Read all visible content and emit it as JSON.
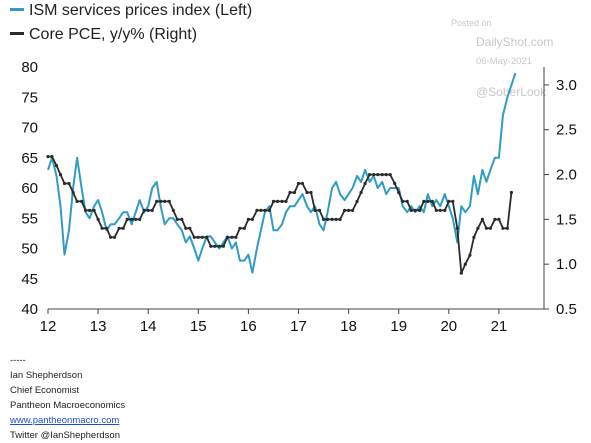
{
  "legend": {
    "left_label": "ISM services prices index (Left)",
    "right_label": "Core PCE, y/y% (Right)"
  },
  "watermark": {
    "posted": "Posted on",
    "site": "DailyShot.com",
    "date": "06-May-2021",
    "handle": "@SoberLook"
  },
  "footer": {
    "divider": "-----",
    "name": "Ian Shepherdson",
    "title": "Chief Economist",
    "company": "Pantheon Macroeconomics",
    "website": "www.pantheonmacro.com",
    "twitter": "Twitter @IanShepherdson"
  },
  "colors": {
    "ism": "#2e9cc4",
    "pce": "#2b2b2b",
    "axis": "#444444",
    "watermark": "#c8c8c8",
    "link": "#1a4fd6"
  },
  "chart_data": {
    "type": "line",
    "x_ticks": [
      "12",
      "13",
      "14",
      "15",
      "16",
      "17",
      "18",
      "19",
      "20",
      "21"
    ],
    "xlim": [
      2012.0,
      2021.9
    ],
    "y_left": {
      "lim": [
        40,
        80
      ],
      "ticks": [
        "40",
        "45",
        "50",
        "55",
        "60",
        "65",
        "70",
        "75",
        "80"
      ]
    },
    "y_right": {
      "lim": [
        0.5,
        3.2
      ],
      "ticks": [
        "0.5",
        "1.0",
        "1.5",
        "2.0",
        "2.5",
        "3.0"
      ]
    },
    "series": [
      {
        "name": "ISM services prices index (Left)",
        "axis": "left",
        "marker": "none",
        "x": [
          2012.0,
          2012.08,
          2012.17,
          2012.25,
          2012.33,
          2012.42,
          2012.5,
          2012.58,
          2012.67,
          2012.75,
          2012.83,
          2012.92,
          2013.0,
          2013.08,
          2013.17,
          2013.25,
          2013.33,
          2013.42,
          2013.5,
          2013.58,
          2013.67,
          2013.75,
          2013.83,
          2013.92,
          2014.0,
          2014.08,
          2014.17,
          2014.25,
          2014.33,
          2014.42,
          2014.5,
          2014.58,
          2014.67,
          2014.75,
          2014.83,
          2014.92,
          2015.0,
          2015.08,
          2015.17,
          2015.25,
          2015.33,
          2015.42,
          2015.5,
          2015.58,
          2015.67,
          2015.75,
          2015.83,
          2015.92,
          2016.0,
          2016.08,
          2016.17,
          2016.25,
          2016.33,
          2016.42,
          2016.5,
          2016.58,
          2016.67,
          2016.75,
          2016.83,
          2016.92,
          2017.0,
          2017.08,
          2017.17,
          2017.25,
          2017.33,
          2017.42,
          2017.5,
          2017.58,
          2017.67,
          2017.75,
          2017.83,
          2017.92,
          2018.0,
          2018.08,
          2018.17,
          2018.25,
          2018.33,
          2018.42,
          2018.5,
          2018.58,
          2018.67,
          2018.75,
          2018.83,
          2018.92,
          2019.0,
          2019.08,
          2019.17,
          2019.25,
          2019.33,
          2019.42,
          2019.5,
          2019.58,
          2019.67,
          2019.75,
          2019.83,
          2019.92,
          2020.0,
          2020.08,
          2020.17,
          2020.25,
          2020.33,
          2020.42,
          2020.5,
          2020.58,
          2020.67,
          2020.75,
          2020.83,
          2020.92,
          2021.0,
          2021.08,
          2021.17,
          2021.25,
          2021.33
        ],
        "values": [
          63,
          65,
          62,
          57,
          49,
          53,
          60,
          65,
          60,
          56,
          55,
          57,
          58,
          56,
          53,
          54,
          54,
          55,
          56,
          56,
          54,
          56,
          58,
          56,
          57,
          60,
          61,
          57,
          54,
          55,
          55,
          54,
          53,
          51,
          52,
          50,
          48,
          50,
          52,
          52,
          51,
          50,
          51,
          52,
          50,
          51,
          48,
          48,
          49,
          46,
          50,
          53,
          56,
          57,
          53,
          53,
          54,
          56,
          57,
          57,
          58,
          59,
          57,
          56,
          57,
          54,
          53,
          56,
          60,
          61,
          59,
          58,
          59,
          60,
          62,
          61,
          63,
          61,
          62,
          60,
          61,
          59,
          60,
          60,
          60,
          57,
          56,
          57,
          56,
          57,
          56,
          59,
          57,
          58,
          57,
          59,
          57,
          55,
          51,
          57,
          56,
          57,
          62,
          59,
          63,
          61,
          63,
          65,
          65,
          72,
          75,
          77,
          79
        ]
      },
      {
        "name": "Core PCE, y/y% (Right)",
        "axis": "right",
        "marker": "dot",
        "x": [
          2012.0,
          2012.08,
          2012.17,
          2012.25,
          2012.33,
          2012.42,
          2012.5,
          2012.58,
          2012.67,
          2012.75,
          2012.83,
          2012.92,
          2013.0,
          2013.08,
          2013.17,
          2013.25,
          2013.33,
          2013.42,
          2013.5,
          2013.58,
          2013.67,
          2013.75,
          2013.83,
          2013.92,
          2014.0,
          2014.08,
          2014.17,
          2014.25,
          2014.33,
          2014.42,
          2014.5,
          2014.58,
          2014.67,
          2014.75,
          2014.83,
          2014.92,
          2015.0,
          2015.08,
          2015.17,
          2015.25,
          2015.33,
          2015.42,
          2015.5,
          2015.58,
          2015.67,
          2015.75,
          2015.83,
          2015.92,
          2016.0,
          2016.08,
          2016.17,
          2016.25,
          2016.33,
          2016.42,
          2016.5,
          2016.58,
          2016.67,
          2016.75,
          2016.83,
          2016.92,
          2017.0,
          2017.08,
          2017.17,
          2017.25,
          2017.33,
          2017.42,
          2017.5,
          2017.58,
          2017.67,
          2017.75,
          2017.83,
          2017.92,
          2018.0,
          2018.08,
          2018.17,
          2018.25,
          2018.33,
          2018.42,
          2018.5,
          2018.58,
          2018.67,
          2018.75,
          2018.83,
          2018.92,
          2019.0,
          2019.08,
          2019.17,
          2019.25,
          2019.33,
          2019.42,
          2019.5,
          2019.58,
          2019.67,
          2019.75,
          2019.83,
          2019.92,
          2020.0,
          2020.08,
          2020.17,
          2020.25,
          2020.33,
          2020.42,
          2020.5,
          2020.58,
          2020.67,
          2020.75,
          2020.83,
          2020.92,
          2021.0,
          2021.08,
          2021.17,
          2021.25
        ],
        "values": [
          2.2,
          2.2,
          2.1,
          2.0,
          1.9,
          1.9,
          1.8,
          1.7,
          1.7,
          1.6,
          1.6,
          1.6,
          1.5,
          1.4,
          1.4,
          1.3,
          1.3,
          1.4,
          1.4,
          1.5,
          1.5,
          1.5,
          1.5,
          1.6,
          1.6,
          1.6,
          1.7,
          1.7,
          1.7,
          1.7,
          1.6,
          1.5,
          1.5,
          1.4,
          1.4,
          1.3,
          1.3,
          1.3,
          1.3,
          1.2,
          1.2,
          1.2,
          1.2,
          1.3,
          1.3,
          1.3,
          1.4,
          1.4,
          1.5,
          1.5,
          1.6,
          1.6,
          1.6,
          1.6,
          1.7,
          1.7,
          1.7,
          1.7,
          1.8,
          1.8,
          1.9,
          1.9,
          1.8,
          1.8,
          1.6,
          1.6,
          1.5,
          1.5,
          1.5,
          1.5,
          1.5,
          1.6,
          1.6,
          1.6,
          1.7,
          1.8,
          1.9,
          2.0,
          2.0,
          2.0,
          2.0,
          2.0,
          2.0,
          1.9,
          1.8,
          1.7,
          1.7,
          1.6,
          1.6,
          1.6,
          1.7,
          1.7,
          1.7,
          1.6,
          1.6,
          1.6,
          1.7,
          1.7,
          1.4,
          0.9,
          1.0,
          1.1,
          1.3,
          1.4,
          1.5,
          1.4,
          1.4,
          1.5,
          1.5,
          1.4,
          1.4,
          1.8
        ]
      }
    ]
  }
}
